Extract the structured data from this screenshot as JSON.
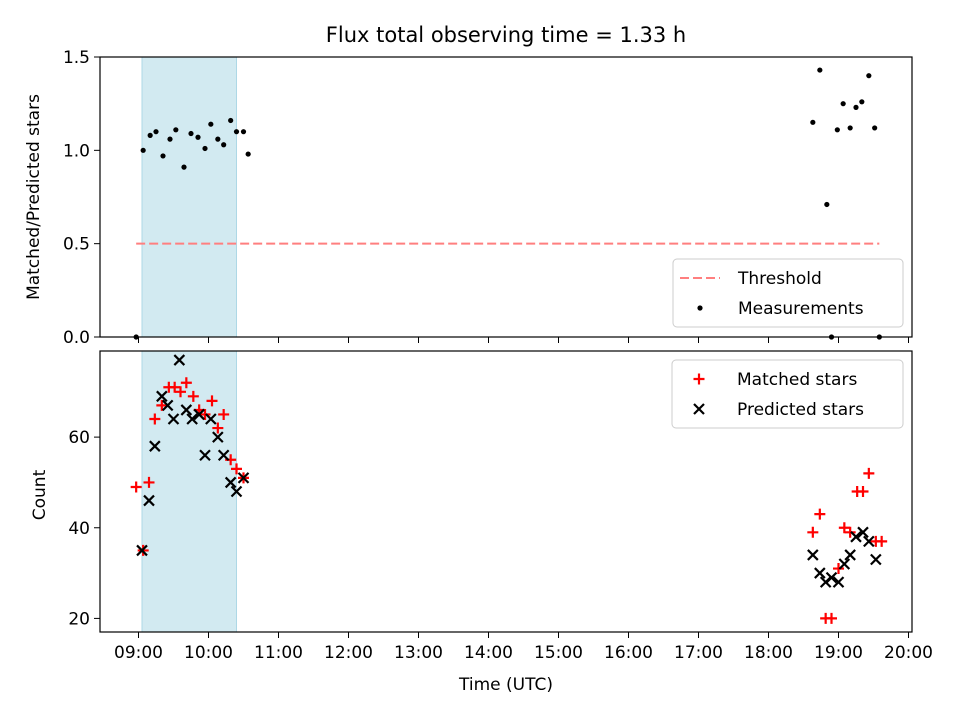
{
  "figure": {
    "title": "Flux total observing time = 1.33 h",
    "xlabel": "Time (UTC)",
    "xticks": [
      "09:00",
      "10:00",
      "11:00",
      "12:00",
      "13:00",
      "14:00",
      "15:00",
      "16:00",
      "17:00",
      "18:00",
      "19:00",
      "20:00"
    ],
    "colors": {
      "highlight": "#add8e6",
      "threshold": "#ff7f7f",
      "matched": "#ff0000",
      "predicted": "#000000",
      "measurements": "#000000"
    }
  },
  "chart_data": [
    {
      "type": "scatter",
      "title": "Flux total observing time = 1.33 h",
      "ylabel": "Matched/Predicted stars",
      "xlim": [
        8.45,
        20.05
      ],
      "ylim": [
        0,
        1.5
      ],
      "yticks": [
        "0.0",
        "0.5",
        "1.0",
        "1.5"
      ],
      "highlight_span": [
        "09:03",
        "10:24"
      ],
      "legend": {
        "placement": "lower right",
        "entries": [
          "Threshold",
          "Measurements"
        ]
      },
      "threshold": {
        "name": "Threshold",
        "y": 0.5,
        "x_range": [
          "08:58",
          "19:35"
        ]
      },
      "series": [
        {
          "name": "Measurements",
          "points": [
            [
              "08:58",
              0.0
            ],
            [
              "09:04",
              1.0
            ],
            [
              "09:10",
              1.08
            ],
            [
              "09:15",
              1.1
            ],
            [
              "09:21",
              0.97
            ],
            [
              "09:27",
              1.06
            ],
            [
              "09:32",
              1.11
            ],
            [
              "09:39",
              0.91
            ],
            [
              "09:45",
              1.09
            ],
            [
              "09:51",
              1.07
            ],
            [
              "09:57",
              1.01
            ],
            [
              "10:02",
              1.14
            ],
            [
              "10:08",
              1.06
            ],
            [
              "10:13",
              1.03
            ],
            [
              "10:19",
              1.16
            ],
            [
              "10:24",
              1.1
            ],
            [
              "10:30",
              1.1
            ],
            [
              "10:34",
              0.98
            ],
            [
              "18:38",
              1.15
            ],
            [
              "18:44",
              1.43
            ],
            [
              "18:50",
              0.71
            ],
            [
              "18:54",
              0.0
            ],
            [
              "18:59",
              1.11
            ],
            [
              "19:04",
              1.25
            ],
            [
              "19:10",
              1.12
            ],
            [
              "19:15",
              1.23
            ],
            [
              "19:20",
              1.26
            ],
            [
              "19:26",
              1.4
            ],
            [
              "19:31",
              1.12
            ],
            [
              "19:35",
              0.0
            ]
          ]
        }
      ]
    },
    {
      "type": "scatter",
      "ylabel": "Count",
      "xlabel": "Time (UTC)",
      "xlim": [
        8.45,
        20.05
      ],
      "ylim": [
        17,
        79
      ],
      "yticks": [
        "20",
        "40",
        "60"
      ],
      "highlight_span": [
        "09:03",
        "10:24"
      ],
      "legend": {
        "placement": "upper right",
        "entries": [
          "Matched stars",
          "Predicted stars"
        ]
      },
      "series": [
        {
          "name": "Matched stars",
          "marker": "+",
          "points": [
            [
              "08:58",
              49
            ],
            [
              "09:04",
              35
            ],
            [
              "09:09",
              50
            ],
            [
              "09:14",
              64
            ],
            [
              "09:20",
              67
            ],
            [
              "09:26",
              71
            ],
            [
              "09:31",
              71
            ],
            [
              "09:36",
              70
            ],
            [
              "09:41",
              72
            ],
            [
              "09:47",
              69
            ],
            [
              "09:52",
              66
            ],
            [
              "09:57",
              65
            ],
            [
              "10:03",
              68
            ],
            [
              "10:08",
              62
            ],
            [
              "10:13",
              65
            ],
            [
              "10:19",
              55
            ],
            [
              "10:24",
              53
            ],
            [
              "10:30",
              51
            ],
            [
              "18:38",
              39
            ],
            [
              "18:44",
              43
            ],
            [
              "18:49",
              20
            ],
            [
              "18:54",
              20
            ],
            [
              "19:00",
              31
            ],
            [
              "19:05",
              40
            ],
            [
              "19:10",
              39
            ],
            [
              "19:16",
              48
            ],
            [
              "19:21",
              48
            ],
            [
              "19:26",
              52
            ],
            [
              "19:32",
              37
            ],
            [
              "19:37",
              37
            ]
          ]
        },
        {
          "name": "Predicted stars",
          "marker": "x",
          "points": [
            [
              "09:03",
              35
            ],
            [
              "09:09",
              46
            ],
            [
              "09:14",
              58
            ],
            [
              "09:20",
              69
            ],
            [
              "09:25",
              67
            ],
            [
              "09:30",
              64
            ],
            [
              "09:35",
              77
            ],
            [
              "09:41",
              66
            ],
            [
              "09:46",
              64
            ],
            [
              "09:52",
              65
            ],
            [
              "09:57",
              56
            ],
            [
              "10:02",
              64
            ],
            [
              "10:08",
              60
            ],
            [
              "10:13",
              56
            ],
            [
              "10:19",
              50
            ],
            [
              "10:24",
              48
            ],
            [
              "10:30",
              51
            ],
            [
              "18:38",
              34
            ],
            [
              "18:44",
              30
            ],
            [
              "18:49",
              28
            ],
            [
              "18:54",
              29
            ],
            [
              "19:00",
              28
            ],
            [
              "19:05",
              32
            ],
            [
              "19:10",
              34
            ],
            [
              "19:15",
              38
            ],
            [
              "19:21",
              39
            ],
            [
              "19:26",
              37
            ],
            [
              "19:32",
              33
            ]
          ]
        }
      ]
    }
  ]
}
